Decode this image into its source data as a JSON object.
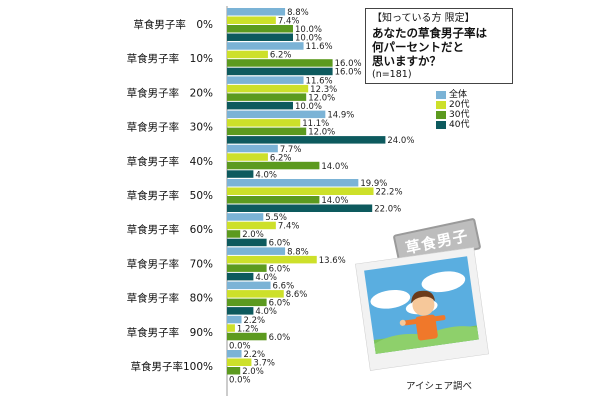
{
  "info": {
    "tag": "【知っている方 限定】",
    "question_lines": [
      "あなたの草食男子率は",
      "何パーセントだと",
      "思いますか？"
    ],
    "n": "(n=181)"
  },
  "stamp": "草食男子",
  "source": "アイシェア調べ",
  "chart_data": {
    "type": "bar",
    "orientation": "horizontal",
    "categories": [
      "草食男子率　0%",
      "草食男子率　10%",
      "草食男子率　20%",
      "草食男子率　30%",
      "草食男子率　40%",
      "草食男子率　50%",
      "草食男子率　60%",
      "草食男子率　70%",
      "草食男子率　80%",
      "草食男子率　90%",
      "草食男子率100%"
    ],
    "series": [
      {
        "name": "全体",
        "color": "#7bb3d6",
        "values": [
          8.8,
          11.6,
          11.6,
          14.9,
          7.7,
          19.9,
          5.5,
          8.8,
          6.6,
          2.2,
          2.2
        ]
      },
      {
        "name": "20代",
        "color": "#cde02a",
        "values": [
          7.4,
          6.2,
          12.3,
          11.1,
          6.2,
          22.2,
          7.4,
          13.6,
          8.6,
          1.2,
          3.7
        ]
      },
      {
        "name": "30代",
        "color": "#5c9a1f",
        "values": [
          10.0,
          16.0,
          12.0,
          12.0,
          14.0,
          14.0,
          2.0,
          6.0,
          6.0,
          6.0,
          2.0
        ]
      },
      {
        "name": "40代",
        "color": "#0d5a5e",
        "values": [
          10.0,
          16.0,
          10.0,
          24.0,
          4.0,
          22.0,
          6.0,
          4.0,
          4.0,
          0.0,
          0.0
        ]
      }
    ],
    "value_format": "0.0%",
    "legend_position": "right"
  }
}
